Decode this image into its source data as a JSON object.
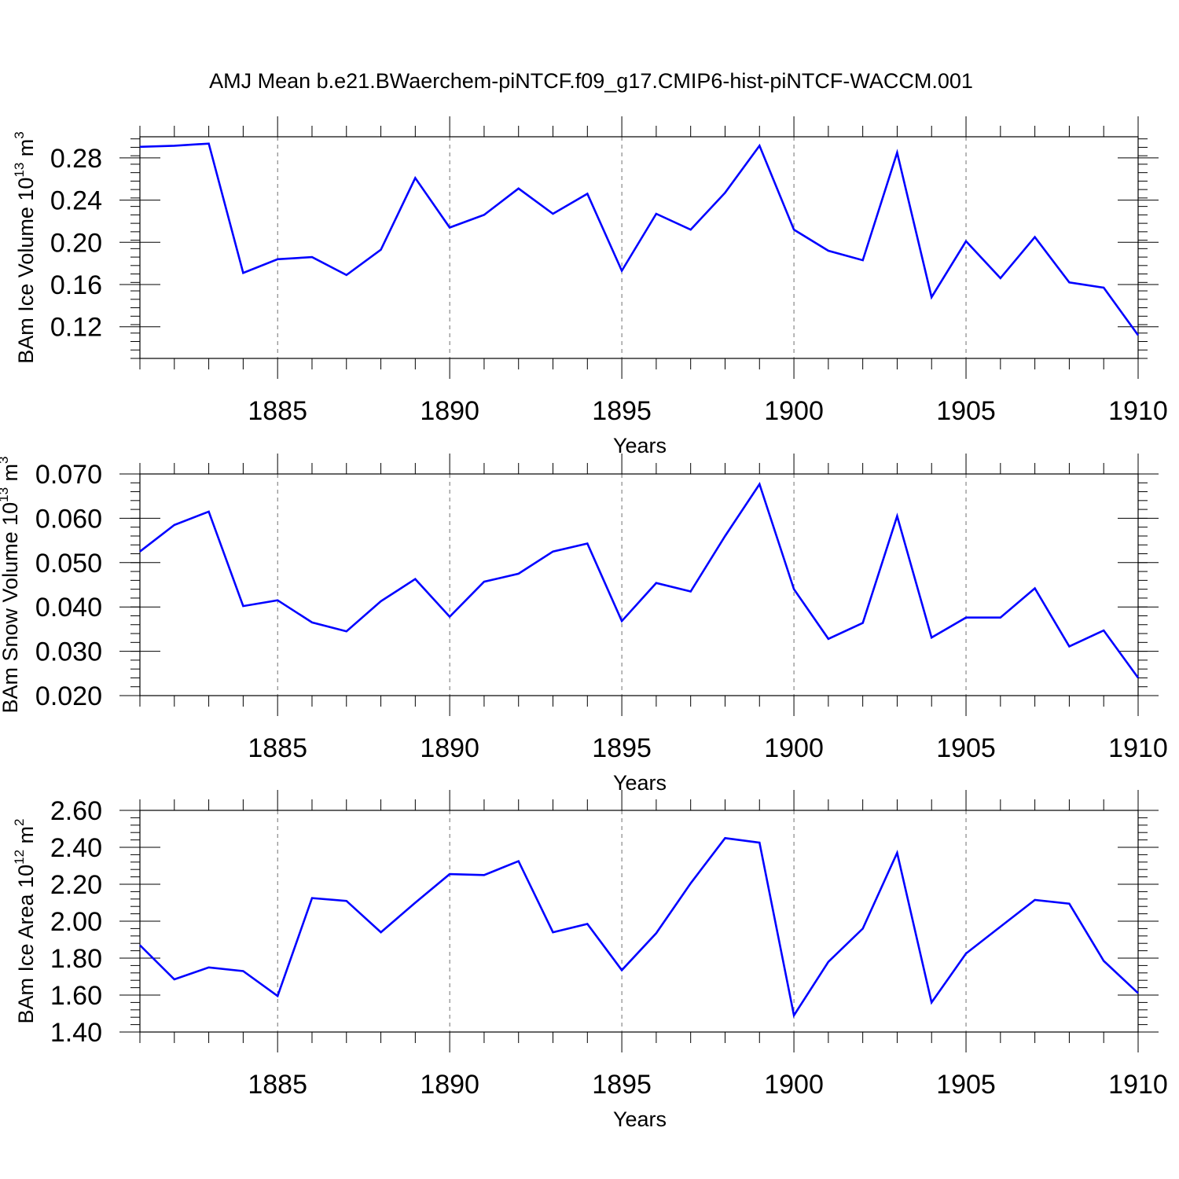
{
  "title": "AMJ Mean b.e21.BWaerchem-piNTCF.f09_g17.CMIP6-hist-piNTCF-WACCM.001",
  "line_color": "#0000ff",
  "grid_color": "#000000",
  "chart_data": [
    {
      "type": "line",
      "ylabel": {
        "main": "BAm Ice Volume 10",
        "exp": "13",
        "unit": " m",
        "unit_exp": "3"
      },
      "xlabel": "Years",
      "xlim": [
        1881,
        1910
      ],
      "ylim": [
        0.09,
        0.3
      ],
      "yticks": [
        0.12,
        0.16,
        0.2,
        0.24,
        0.28
      ],
      "ytick_labels": [
        "0.12",
        "0.16",
        "0.20",
        "0.24",
        "0.28"
      ],
      "xticks": [
        1885,
        1890,
        1895,
        1900,
        1905,
        1910
      ],
      "xtick_labels": [
        "1885",
        "1890",
        "1895",
        "1900",
        "1905",
        "1910"
      ],
      "grid": "vertical-dashed",
      "series": [
        {
          "x": [
            1881,
            1882,
            1883,
            1884,
            1885,
            1886,
            1887,
            1888,
            1889,
            1890,
            1891,
            1892,
            1893,
            1894,
            1895,
            1896,
            1897,
            1898,
            1899,
            1900,
            1901,
            1902,
            1903,
            1904,
            1905,
            1906,
            1907,
            1908,
            1909,
            1910
          ],
          "values": [
            0.2905,
            0.2915,
            0.2935,
            0.171,
            0.184,
            0.186,
            0.169,
            0.193,
            0.261,
            0.214,
            0.226,
            0.251,
            0.227,
            0.246,
            0.173,
            0.227,
            0.212,
            0.247,
            0.2915,
            0.212,
            0.192,
            0.183,
            0.285,
            0.148,
            0.201,
            0.166,
            0.205,
            0.162,
            0.157,
            0.112
          ]
        }
      ]
    },
    {
      "type": "line",
      "ylabel": {
        "main": "BAm Snow Volume 10",
        "exp": "13",
        "unit": " m",
        "unit_exp": "3"
      },
      "xlabel": "Years",
      "xlim": [
        1881,
        1910
      ],
      "ylim": [
        0.02,
        0.07
      ],
      "yticks": [
        0.02,
        0.03,
        0.04,
        0.05,
        0.06,
        0.07
      ],
      "ytick_labels": [
        "0.020",
        "0.030",
        "0.040",
        "0.050",
        "0.060",
        "0.070"
      ],
      "xticks": [
        1885,
        1890,
        1895,
        1900,
        1905,
        1910
      ],
      "xtick_labels": [
        "1885",
        "1890",
        "1895",
        "1900",
        "1905",
        "1910"
      ],
      "grid": "vertical-dashed",
      "series": [
        {
          "x": [
            1881,
            1882,
            1883,
            1884,
            1885,
            1886,
            1887,
            1888,
            1889,
            1890,
            1891,
            1892,
            1893,
            1894,
            1895,
            1896,
            1897,
            1898,
            1899,
            1900,
            1901,
            1902,
            1903,
            1904,
            1905,
            1906,
            1907,
            1908,
            1909,
            1910
          ],
          "values": [
            0.0525,
            0.0585,
            0.0615,
            0.0402,
            0.0415,
            0.0365,
            0.0345,
            0.0413,
            0.0463,
            0.0378,
            0.0457,
            0.0475,
            0.0525,
            0.0543,
            0.0368,
            0.0454,
            0.0435,
            0.056,
            0.0677,
            0.044,
            0.0328,
            0.0364,
            0.0605,
            0.0331,
            0.0376,
            0.0376,
            0.0442,
            0.0311,
            0.0347,
            0.024
          ]
        }
      ]
    },
    {
      "type": "line",
      "ylabel": {
        "main": "BAm Ice Area 10",
        "exp": "12",
        "unit": " m",
        "unit_exp": "2"
      },
      "xlabel": "Years",
      "xlim": [
        1881,
        1910
      ],
      "ylim": [
        1.4,
        2.6
      ],
      "yticks": [
        1.4,
        1.6,
        1.8,
        2.0,
        2.2,
        2.4,
        2.6
      ],
      "ytick_labels": [
        "1.40",
        "1.60",
        "1.80",
        "2.00",
        "2.20",
        "2.40",
        "2.60"
      ],
      "xticks": [
        1885,
        1890,
        1895,
        1900,
        1905,
        1910
      ],
      "xtick_labels": [
        "1885",
        "1890",
        "1895",
        "1900",
        "1905",
        "1910"
      ],
      "grid": "vertical-dashed",
      "series": [
        {
          "x": [
            1881,
            1882,
            1883,
            1884,
            1885,
            1886,
            1887,
            1888,
            1889,
            1890,
            1891,
            1892,
            1893,
            1894,
            1895,
            1896,
            1897,
            1898,
            1899,
            1900,
            1901,
            1902,
            1903,
            1904,
            1905,
            1906,
            1907,
            1908,
            1909,
            1910
          ],
          "values": [
            1.87,
            1.685,
            1.75,
            1.73,
            1.595,
            2.125,
            2.11,
            1.94,
            2.1,
            2.255,
            2.25,
            2.325,
            1.94,
            1.985,
            1.735,
            1.935,
            2.205,
            2.45,
            2.425,
            1.49,
            1.78,
            1.96,
            2.37,
            1.56,
            1.825,
            1.97,
            2.115,
            2.095,
            1.785,
            1.61
          ]
        }
      ]
    }
  ]
}
